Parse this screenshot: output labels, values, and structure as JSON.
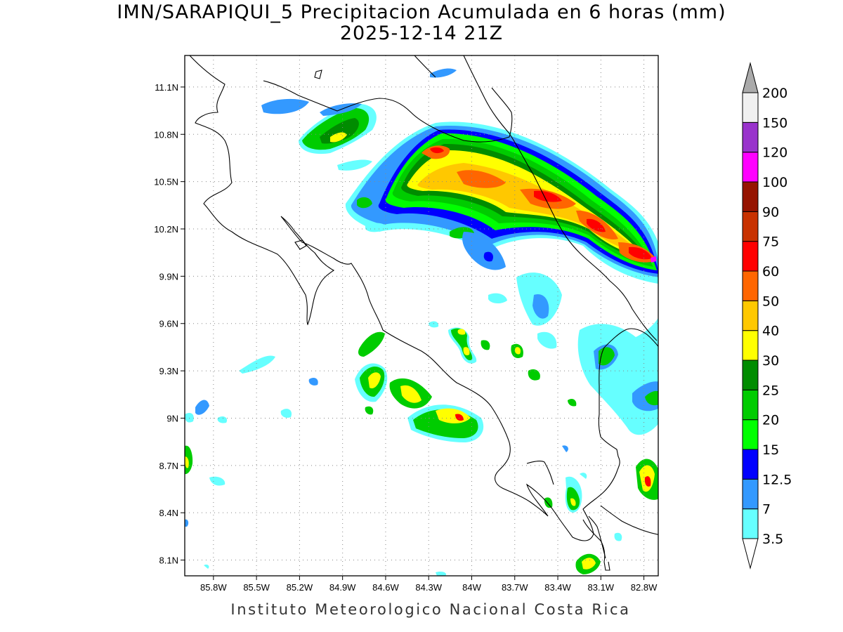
{
  "title": {
    "line1": "IMN/SARAPIQUI_5 Precipitacion Acumulada en 6 horas (mm)",
    "line2": "2025-12-14 21Z"
  },
  "footer": "Instituto Meteorologico Nacional Costa Rica",
  "map": {
    "lat_range": [
      8.0,
      11.3
    ],
    "lon_range": [
      -86.0,
      -82.7
    ],
    "lat_ticks": [
      {
        "value": 11.1,
        "label": "11.1N"
      },
      {
        "value": 10.8,
        "label": "10.8N"
      },
      {
        "value": 10.5,
        "label": "10.5N"
      },
      {
        "value": 10.2,
        "label": "10.2N"
      },
      {
        "value": 9.9,
        "label": "9.9N"
      },
      {
        "value": 9.6,
        "label": "9.6N"
      },
      {
        "value": 9.3,
        "label": "9.3N"
      },
      {
        "value": 9.0,
        "label": "9N"
      },
      {
        "value": 8.7,
        "label": "8.7N"
      },
      {
        "value": 8.4,
        "label": "8.4N"
      },
      {
        "value": 8.1,
        "label": "8.1N"
      }
    ],
    "lon_ticks": [
      {
        "value": -85.8,
        "label": "85.8W"
      },
      {
        "value": -85.5,
        "label": "85.5W"
      },
      {
        "value": -85.2,
        "label": "85.2W"
      },
      {
        "value": -84.9,
        "label": "84.9W"
      },
      {
        "value": -84.6,
        "label": "84.6W"
      },
      {
        "value": -84.3,
        "label": "84.3W"
      },
      {
        "value": -84.0,
        "label": "84W"
      },
      {
        "value": -83.7,
        "label": "83.7W"
      },
      {
        "value": -83.4,
        "label": "83.4W"
      },
      {
        "value": -83.1,
        "label": "83.1W"
      },
      {
        "value": -82.8,
        "label": "82.8W"
      }
    ],
    "grid": true
  },
  "colorbar": {
    "levels": [
      "3.5",
      "7",
      "12.5",
      "15",
      "20",
      "25",
      "30",
      "40",
      "50",
      "60",
      "75",
      "90",
      "100",
      "120",
      "150",
      "200"
    ],
    "colors": [
      "#66ffff",
      "#3399ff",
      "#0000ff",
      "#00ff00",
      "#00cc00",
      "#008c00",
      "#ffff00",
      "#ffc800",
      "#ff6600",
      "#ff0000",
      "#c83200",
      "#961400",
      "#ff00ff",
      "#9933cc",
      "#f0f0f0",
      "#aaaaaa"
    ]
  },
  "colors": {
    "land_bg": "#ffffff",
    "coastline": "#000000",
    "grid": "#888888"
  }
}
